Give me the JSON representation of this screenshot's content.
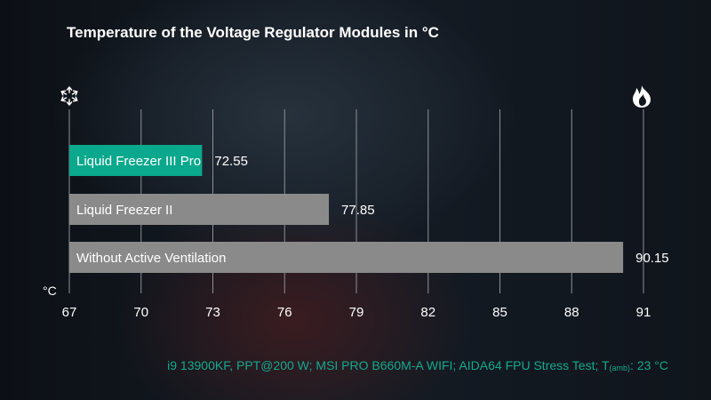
{
  "chart_data": {
    "type": "bar",
    "orientation": "horizontal",
    "title": "Temperature of the Voltage Regulator Modules in °C",
    "unit_label": "°C",
    "categories": [
      "Liquid Freezer III Pro",
      "Liquid Freezer II",
      "Without Active Ventilation"
    ],
    "values": [
      72.55,
      77.85,
      90.15
    ],
    "value_labels": [
      "72.55",
      "77.85",
      "90.15"
    ],
    "bar_colors": [
      "#0aa88c",
      "#8a8a8a",
      "#8a8a8a"
    ],
    "xlim": [
      67,
      91
    ],
    "xticks": [
      67,
      70,
      73,
      76,
      79,
      82,
      85,
      88,
      91
    ],
    "grid": true,
    "icons": {
      "left": "snowflake-icon",
      "right": "flame-icon"
    }
  },
  "footer": {
    "main": "i9 13900KF, PPT@200 W; MSI PRO B660M-A WIFI; AIDA64 FPU Stress Test; T",
    "sub": "(amb)",
    "tail": ": 23 °C"
  }
}
